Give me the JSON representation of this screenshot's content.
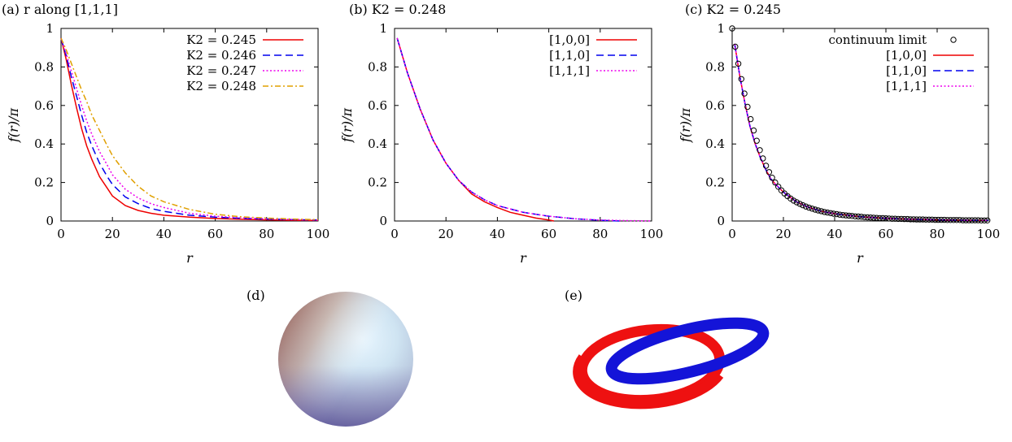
{
  "chart_data": [
    {
      "type": "line",
      "panel_label": "(a) r along [1,1,1]",
      "xlabel": "r",
      "ylabel": "f(r)/π",
      "xlim": [
        0,
        100
      ],
      "ylim": [
        0,
        1
      ],
      "xticks": [
        "0",
        "20",
        "40",
        "60",
        "80",
        "100"
      ],
      "yticks": [
        "0",
        "0.2",
        "0.4",
        "0.6",
        "0.8",
        "1"
      ],
      "legend_position": "top-right",
      "series": [
        {
          "name": "K2 = 0.245",
          "color": "#ee0000",
          "dash": "solid",
          "x": [
            0,
            2,
            4,
            6,
            8,
            10,
            12,
            15,
            18,
            20,
            25,
            30,
            35,
            40,
            50,
            60,
            70,
            80,
            90,
            100
          ],
          "y": [
            0.95,
            0.84,
            0.71,
            0.59,
            0.48,
            0.39,
            0.32,
            0.23,
            0.17,
            0.13,
            0.08,
            0.055,
            0.04,
            0.03,
            0.02,
            0.013,
            0.009,
            0.006,
            0.004,
            0.003
          ]
        },
        {
          "name": "K2 = 0.246",
          "color": "#0000ee",
          "dash": "dashed",
          "x": [
            0,
            2,
            4,
            6,
            8,
            10,
            12,
            15,
            18,
            20,
            25,
            30,
            35,
            40,
            50,
            60,
            70,
            80,
            90,
            100
          ],
          "y": [
            0.95,
            0.86,
            0.75,
            0.65,
            0.55,
            0.46,
            0.39,
            0.3,
            0.23,
            0.19,
            0.125,
            0.09,
            0.065,
            0.05,
            0.03,
            0.02,
            0.014,
            0.01,
            0.007,
            0.005
          ]
        },
        {
          "name": "K2 = 0.247",
          "color": "#ee00ee",
          "dash": "dotted",
          "x": [
            0,
            2,
            4,
            6,
            8,
            10,
            12,
            15,
            18,
            20,
            25,
            30,
            35,
            40,
            50,
            60,
            70,
            80,
            90,
            100
          ],
          "y": [
            0.95,
            0.87,
            0.78,
            0.69,
            0.6,
            0.52,
            0.45,
            0.36,
            0.29,
            0.24,
            0.165,
            0.12,
            0.09,
            0.07,
            0.04,
            0.025,
            0.017,
            0.012,
            0.008,
            0.006
          ]
        },
        {
          "name": "K2 = 0.248",
          "color": "#e0a000",
          "dash": "dashdot",
          "x": [
            0,
            2,
            4,
            6,
            8,
            10,
            12,
            15,
            18,
            20,
            25,
            30,
            35,
            40,
            50,
            60,
            70,
            80,
            90,
            100
          ],
          "y": [
            0.95,
            0.89,
            0.82,
            0.75,
            0.68,
            0.62,
            0.55,
            0.47,
            0.39,
            0.34,
            0.25,
            0.18,
            0.13,
            0.1,
            0.06,
            0.035,
            0.022,
            0.015,
            0.01,
            0.007
          ]
        }
      ]
    },
    {
      "type": "line",
      "panel_label": "(b) K2 = 0.248",
      "xlabel": "r",
      "ylabel": "f(r)/π",
      "xlim": [
        0,
        100
      ],
      "ylim": [
        0,
        1
      ],
      "xticks": [
        "0",
        "20",
        "40",
        "60",
        "80",
        "100"
      ],
      "yticks": [
        "0",
        "0.2",
        "0.4",
        "0.6",
        "0.8",
        "1"
      ],
      "legend_position": "top-right",
      "series": [
        {
          "name": "[1,0,0]",
          "color": "#ee0000",
          "dash": "solid",
          "x": [
            1,
            5,
            10,
            15,
            20,
            25,
            30,
            35,
            40,
            45,
            50,
            55,
            60,
            62
          ],
          "y": [
            0.95,
            0.77,
            0.58,
            0.42,
            0.3,
            0.21,
            0.14,
            0.1,
            0.07,
            0.045,
            0.03,
            0.015,
            0.005,
            0.0
          ]
        },
        {
          "name": "[1,1,0]",
          "color": "#0000ee",
          "dash": "dashed",
          "x": [
            1,
            5,
            10,
            15,
            20,
            25,
            30,
            35,
            40,
            50,
            60,
            70,
            80,
            88
          ],
          "y": [
            0.95,
            0.77,
            0.58,
            0.42,
            0.3,
            0.21,
            0.15,
            0.11,
            0.08,
            0.045,
            0.025,
            0.012,
            0.004,
            0.0
          ]
        },
        {
          "name": "[1,1,1]",
          "color": "#ee00ee",
          "dash": "dotted",
          "x": [
            1,
            5,
            10,
            15,
            20,
            25,
            30,
            35,
            40,
            50,
            60,
            70,
            80,
            90,
            100
          ],
          "y": [
            0.95,
            0.77,
            0.58,
            0.42,
            0.3,
            0.21,
            0.15,
            0.11,
            0.08,
            0.045,
            0.025,
            0.012,
            0.005,
            0.002,
            0.0
          ]
        }
      ]
    },
    {
      "type": "line",
      "panel_label": "(c) K2 = 0.245",
      "xlabel": "r",
      "ylabel": "f(r)/π",
      "xlim": [
        0,
        100
      ],
      "ylim": [
        0,
        1
      ],
      "xticks": [
        "0",
        "20",
        "40",
        "60",
        "80",
        "100"
      ],
      "yticks": [
        "0",
        "0.2",
        "0.4",
        "0.6",
        "0.8",
        "1"
      ],
      "legend_position": "top-right",
      "continuum_limit": {
        "name": "continuum limit",
        "x": [
          0,
          1.2,
          2.4,
          3.6,
          4.8,
          6,
          7.2,
          8.4,
          9.6,
          10.8,
          12,
          13.2,
          14.4,
          15.6,
          16.8,
          18,
          19.2,
          20.4,
          21.6,
          22.8,
          24,
          25.2,
          26.4,
          27.6,
          28.8,
          30,
          31.2,
          32.4,
          33.6,
          34.8,
          36,
          37.2,
          38.4,
          39.6,
          40.8,
          42,
          43.2,
          44.4,
          45.6,
          46.8,
          48,
          49.2,
          50.4,
          51.6,
          52.8,
          54,
          55.2,
          56.4,
          57.6,
          58.8,
          60,
          61.2,
          62.4,
          63.6,
          64.8,
          66,
          67.2,
          68.4,
          69.6,
          70.8,
          72,
          73.2,
          74.4,
          75.6,
          76.8,
          78,
          79.2,
          80.4,
          81.6,
          82.8,
          84,
          85.2,
          86.4,
          87.6,
          88.8,
          90,
          91.2,
          92.4,
          93.6,
          94.8,
          96,
          97.2,
          98.4,
          99.6
        ],
        "y": [
          1.0,
          0.905,
          0.817,
          0.737,
          0.662,
          0.593,
          0.529,
          0.47,
          0.417,
          0.368,
          0.325,
          0.287,
          0.254,
          0.225,
          0.2,
          0.178,
          0.159,
          0.143,
          0.129,
          0.117,
          0.106,
          0.097,
          0.089,
          0.082,
          0.075,
          0.069,
          0.064,
          0.059,
          0.055,
          0.051,
          0.047,
          0.044,
          0.041,
          0.038,
          0.036,
          0.033,
          0.031,
          0.029,
          0.028,
          0.026,
          0.024,
          0.023,
          0.022,
          0.02,
          0.019,
          0.018,
          0.017,
          0.016,
          0.015,
          0.015,
          0.014,
          0.013,
          0.012,
          0.012,
          0.011,
          0.011,
          0.01,
          0.01,
          0.009,
          0.009,
          0.008,
          0.008,
          0.008,
          0.007,
          0.007,
          0.007,
          0.006,
          0.006,
          0.006,
          0.006,
          0.005,
          0.005,
          0.005,
          0.005,
          0.005,
          0.004,
          0.004,
          0.004,
          0.004,
          0.004,
          0.004,
          0.003,
          0.003,
          0.003
        ]
      },
      "series": [
        {
          "name": "[1,0,0]",
          "color": "#ee0000",
          "dash": "solid",
          "x": [
            1,
            3,
            5,
            7,
            9,
            11,
            13,
            15,
            17,
            20,
            25,
            30,
            35,
            40,
            50,
            60,
            70,
            80,
            90,
            100
          ],
          "y": [
            0.92,
            0.75,
            0.61,
            0.49,
            0.4,
            0.33,
            0.27,
            0.22,
            0.19,
            0.15,
            0.1,
            0.07,
            0.05,
            0.038,
            0.022,
            0.014,
            0.009,
            0.006,
            0.004,
            0.003
          ]
        },
        {
          "name": "[1,1,0]",
          "color": "#0000ee",
          "dash": "dashed",
          "x": [
            1,
            3,
            5,
            7,
            9,
            11,
            13,
            15,
            17,
            20,
            25,
            30,
            35,
            40,
            50,
            60,
            70,
            80,
            90,
            100
          ],
          "y": [
            0.92,
            0.75,
            0.61,
            0.49,
            0.4,
            0.33,
            0.27,
            0.22,
            0.19,
            0.15,
            0.1,
            0.07,
            0.05,
            0.038,
            0.022,
            0.014,
            0.009,
            0.006,
            0.004,
            0.003
          ]
        },
        {
          "name": "[1,1,1]",
          "color": "#ee00ee",
          "dash": "dotted",
          "x": [
            1,
            3,
            5,
            7,
            9,
            11,
            13,
            15,
            17,
            20,
            25,
            30,
            35,
            40,
            50,
            60,
            70,
            80,
            90,
            100
          ],
          "y": [
            0.92,
            0.75,
            0.61,
            0.49,
            0.4,
            0.33,
            0.27,
            0.22,
            0.19,
            0.15,
            0.1,
            0.07,
            0.05,
            0.038,
            0.022,
            0.014,
            0.009,
            0.006,
            0.004,
            0.003
          ]
        }
      ]
    }
  ],
  "panels": {
    "d": {
      "label": "(d)"
    },
    "e": {
      "label": "(e)"
    }
  },
  "colors": {
    "ring_red": "#ee1111",
    "ring_blue": "#1111dd"
  }
}
